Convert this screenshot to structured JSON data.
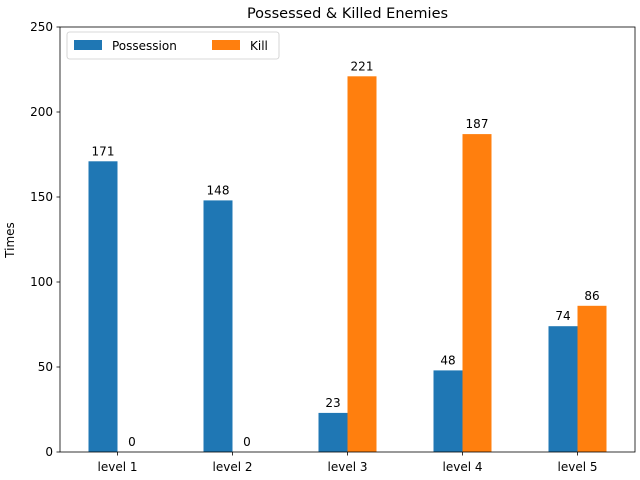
{
  "chart_data": {
    "type": "bar",
    "title": "Possessed & Killed Enemies",
    "xlabel": "",
    "ylabel": "Times",
    "categories": [
      "level 1",
      "level 2",
      "level 3",
      "level 4",
      "level 5"
    ],
    "series": [
      {
        "name": "Possession",
        "color": "#1f77b4",
        "values": [
          171,
          148,
          23,
          48,
          74
        ]
      },
      {
        "name": "Kill",
        "color": "#ff7f0e",
        "values": [
          0,
          0,
          221,
          187,
          86
        ]
      }
    ],
    "ylim": [
      0,
      250
    ],
    "yticks": [
      0,
      50,
      100,
      150,
      200,
      250
    ],
    "grid": false,
    "legend_position": "top-left",
    "data_labels": true
  }
}
